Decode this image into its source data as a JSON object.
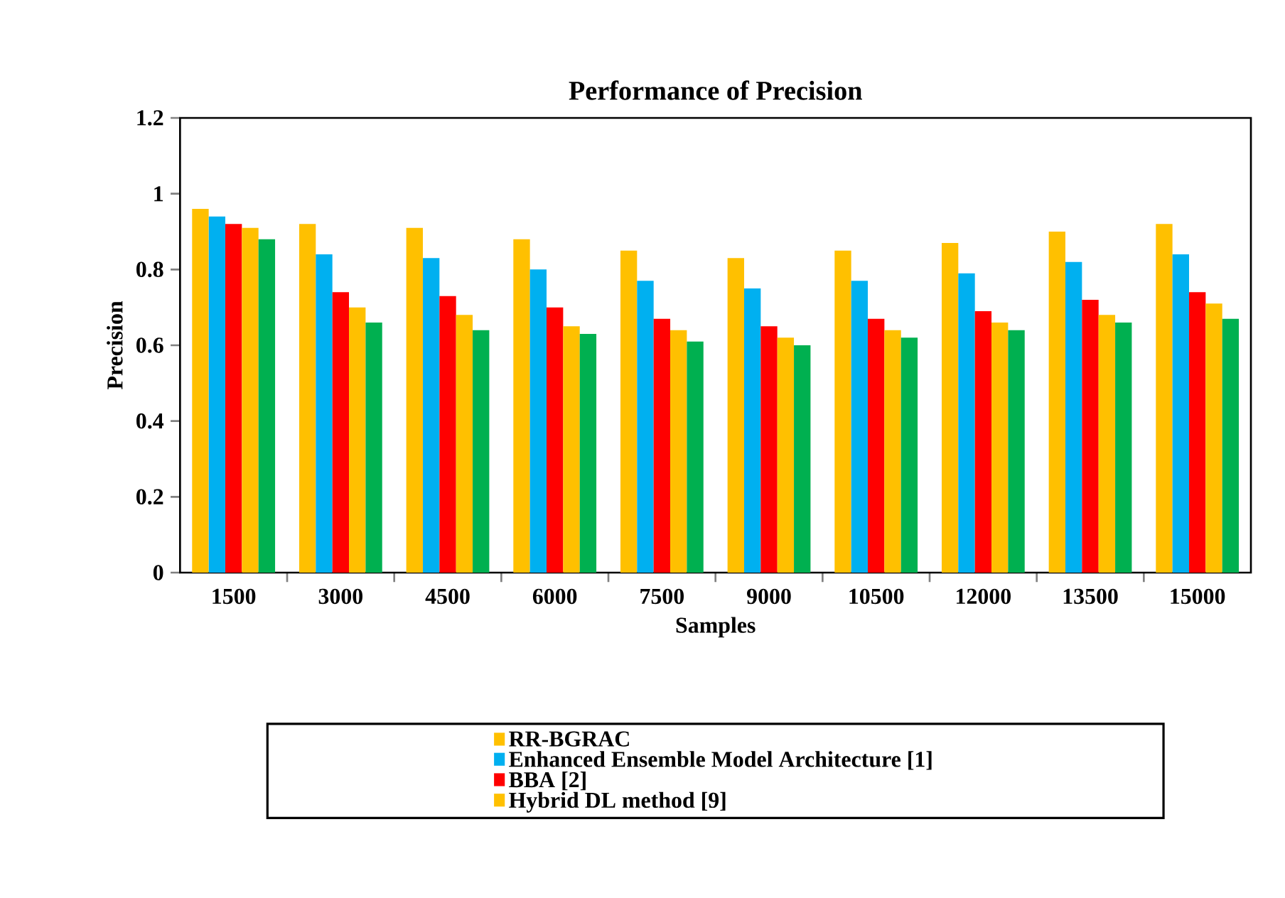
{
  "chart_data": {
    "type": "bar",
    "title": "Performance of Precision",
    "xlabel": "Samples",
    "ylabel": "Precision",
    "categories": [
      "1500",
      "3000",
      "4500",
      "6000",
      "7500",
      "9000",
      "10500",
      "12000",
      "13500",
      "15000"
    ],
    "series": [
      {
        "name": "RR-BGRAC",
        "color": "#ffc000",
        "values": [
          0.96,
          0.92,
          0.91,
          0.88,
          0.85,
          0.83,
          0.85,
          0.87,
          0.9,
          0.92
        ]
      },
      {
        "name": "Enhanced Ensemble Model Architecture [1]",
        "color": "#00b0f0",
        "values": [
          0.94,
          0.84,
          0.83,
          0.8,
          0.77,
          0.75,
          0.77,
          0.79,
          0.82,
          0.84
        ]
      },
      {
        "name": "BBA [2]",
        "color": "#ff0000",
        "values": [
          0.92,
          0.74,
          0.73,
          0.7,
          0.67,
          0.65,
          0.67,
          0.69,
          0.72,
          0.74
        ]
      },
      {
        "name": "Hybrid DL method [9]",
        "color": "#ffc000",
        "values": [
          0.91,
          0.7,
          0.68,
          0.65,
          0.64,
          0.62,
          0.64,
          0.66,
          0.68,
          0.71
        ]
      },
      {
        "color": "#00b050",
        "values": [
          0.88,
          0.66,
          0.64,
          0.63,
          0.61,
          0.6,
          0.62,
          0.64,
          0.66,
          0.67
        ]
      }
    ],
    "ylim": [
      0,
      1.2
    ],
    "yticks": [
      0,
      0.2,
      0.4,
      0.6,
      0.8,
      1,
      1.2
    ],
    "legend": "bottom"
  }
}
